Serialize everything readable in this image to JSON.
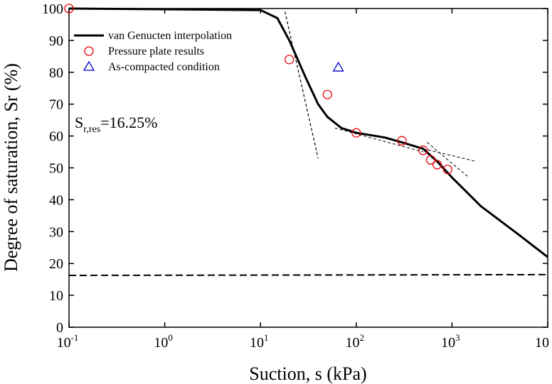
{
  "chart_data": {
    "type": "line",
    "xlabel": "Suction, s (kPa)",
    "ylabel": "Degree of saturation, Sr (%)",
    "xscale": "log",
    "xlim": [
      0.1,
      10000
    ],
    "ylim": [
      0,
      100
    ],
    "xticks": [
      {
        "value": 0.1,
        "label": "10",
        "exponent": "-1"
      },
      {
        "value": 1,
        "label": "10",
        "exponent": "0"
      },
      {
        "value": 10,
        "label": "10",
        "exponent": "1"
      },
      {
        "value": 100,
        "label": "10",
        "exponent": "2"
      },
      {
        "value": 1000,
        "label": "10",
        "exponent": "3"
      },
      {
        "value": 10000,
        "label": "10"
      }
    ],
    "yticks": [
      0,
      10,
      20,
      30,
      40,
      50,
      60,
      70,
      80,
      90,
      100
    ],
    "legend": "upper left",
    "annotation": {
      "base": "S",
      "subscript": "r,res",
      "text": "=16.25%"
    },
    "series": [
      {
        "name": "van Genucten interpolation",
        "color": "#000000",
        "marker": "none",
        "dash": false,
        "width": 3,
        "x": [
          0.1,
          10,
          15,
          20,
          30,
          40,
          50,
          70,
          100,
          200,
          300,
          500,
          700,
          1000,
          2000,
          5000,
          10000
        ],
        "values": [
          100,
          99.5,
          97,
          90,
          78,
          70,
          66,
          62.5,
          61,
          59.5,
          58,
          56,
          52,
          47,
          38,
          29,
          22
        ]
      },
      {
        "name": "Pressure plate results",
        "color": "#e8000b",
        "marker": "circle",
        "dash": false,
        "width": 0,
        "x": [
          0.1,
          20,
          50,
          100,
          300,
          500,
          600,
          700,
          900
        ],
        "values": [
          100,
          84,
          73,
          61,
          58.5,
          55.5,
          52.5,
          51,
          49.5
        ]
      },
      {
        "name": "As-compacted condition",
        "color": "#0000cc",
        "marker": "triangle",
        "dash": false,
        "width": 0,
        "x": [
          65
        ],
        "values": [
          81.5
        ]
      },
      {
        "color": "#000000",
        "marker": "none",
        "dash": true,
        "width": 2,
        "x": [
          0.1,
          10000
        ],
        "values": [
          16.25,
          16.5
        ]
      },
      {
        "color": "#000000",
        "marker": "none",
        "dash": true,
        "width": 1.2,
        "x": [
          18,
          40
        ],
        "values": [
          99,
          53
        ]
      },
      {
        "color": "#000000",
        "marker": "none",
        "dash": true,
        "width": 1,
        "x": [
          60,
          500
        ],
        "values": [
          62.5,
          55
        ]
      },
      {
        "color": "#000000",
        "marker": "none",
        "dash": true,
        "width": 1,
        "x": [
          500,
          1800
        ],
        "values": [
          56,
          52
        ]
      },
      {
        "color": "#000000",
        "marker": "none",
        "dash": true,
        "width": 1,
        "x": [
          550,
          1500
        ],
        "values": [
          58,
          47
        ]
      }
    ]
  }
}
